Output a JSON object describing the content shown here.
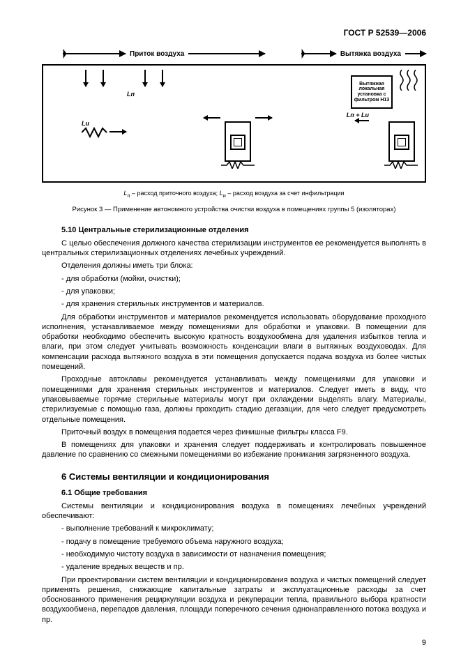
{
  "header": "ГОСТ Р 52539—2006",
  "diagram": {
    "supply_label": "Приток воздуха",
    "exhaust_label": "Вытяжка воздуха",
    "unit_label": "Вытяжная локальная установка с фильтром H13",
    "var_Lp": "Lп",
    "var_Li": "Lи",
    "var_sum": "Lп + Lи",
    "note_html": "<i>L</i><sub>п</sub> – расход приточного воздуха; <i>L</i><sub>и</sub> – расход воздуха за счет инфильтрации",
    "caption": "Рисунок 3 — Применение автономного устройства очистки воздуха в помещениях группы 5 (изоляторах)"
  },
  "s510_title": "5.10 Центральные стерилизационные отделения",
  "s510_p1": "С целью обеспечения должного качества стерилизации инструментов ее рекомендуется выполнять в центральных стерилизационных отделениях лечебных учреждений.",
  "s510_p2": "Отделения должны иметь три блока:",
  "s510_li1": "- для обработки (мойки, очистки);",
  "s510_li2": "- для упаковки;",
  "s510_li3": "- для хранения стерильных инструментов и материалов.",
  "s510_p3": "Для обработки инструментов и материалов рекомендуется использовать оборудование проходного исполнения, устанавливаемое между помещениями для обработки и упаковки. В помещении для обработки необходимо обеспечить высокую кратность воздухообмена для удаления избытков тепла и влаги, при этом следует учитывать возможность конденсации влаги в вытяжных воздуховодах. Для компенсации расхода вытяжного воздуха в эти помещения допускается подача воздуха из более чистых помещений.",
  "s510_p4": "Проходные автоклавы рекомендуется устанавливать между помещениями для упаковки и помещениями для хранения стерильных инструментов и материалов. Следует иметь в виду, что упаковываемые горячие стерильные материалы могут при охлаждении выделять влагу. Материалы, стерилизуемые с помощью газа, должны проходить стадию дегазации, для чего следует предусмотреть отдельные помещения.",
  "s510_p5": "Приточный воздух в помещения подается через финишные фильтры класса F9.",
  "s510_p6": "В помещениях для упаковки и хранения следует поддерживать и контролировать повышенное давление по сравнению со смежными помещениями во избежание проникания загрязненного воздуха.",
  "s6_title": "6  Системы вентиляции и кондиционирования",
  "s61_title": "6.1 Общие требования",
  "s61_p1": "Системы вентиляции и кондиционирования воздуха в помещениях лечебных учреждений обеспечивают:",
  "s61_li1": "- выполнение требований к микроклимату;",
  "s61_li2": "- подачу в помещение требуемого объема наружного воздуха;",
  "s61_li3": "- необходимую чистоту воздуха в зависимости от назначения помещения;",
  "s61_li4": "- удаление вредных веществ и пр.",
  "s61_p2": "При проектировании систем вентиляции и кондиционирования воздуха и чистых помещений следует применять решения, снижающие капитальные затраты и эксплуатационные расходы за счет обоснованного применения рециркуляции воздуха и рекуперации тепла, правильного выбора кратности воздухообмена, перепадов давления, площади поперечного сечения однонаправленного потока воздуха и пр.",
  "page_num": "9"
}
